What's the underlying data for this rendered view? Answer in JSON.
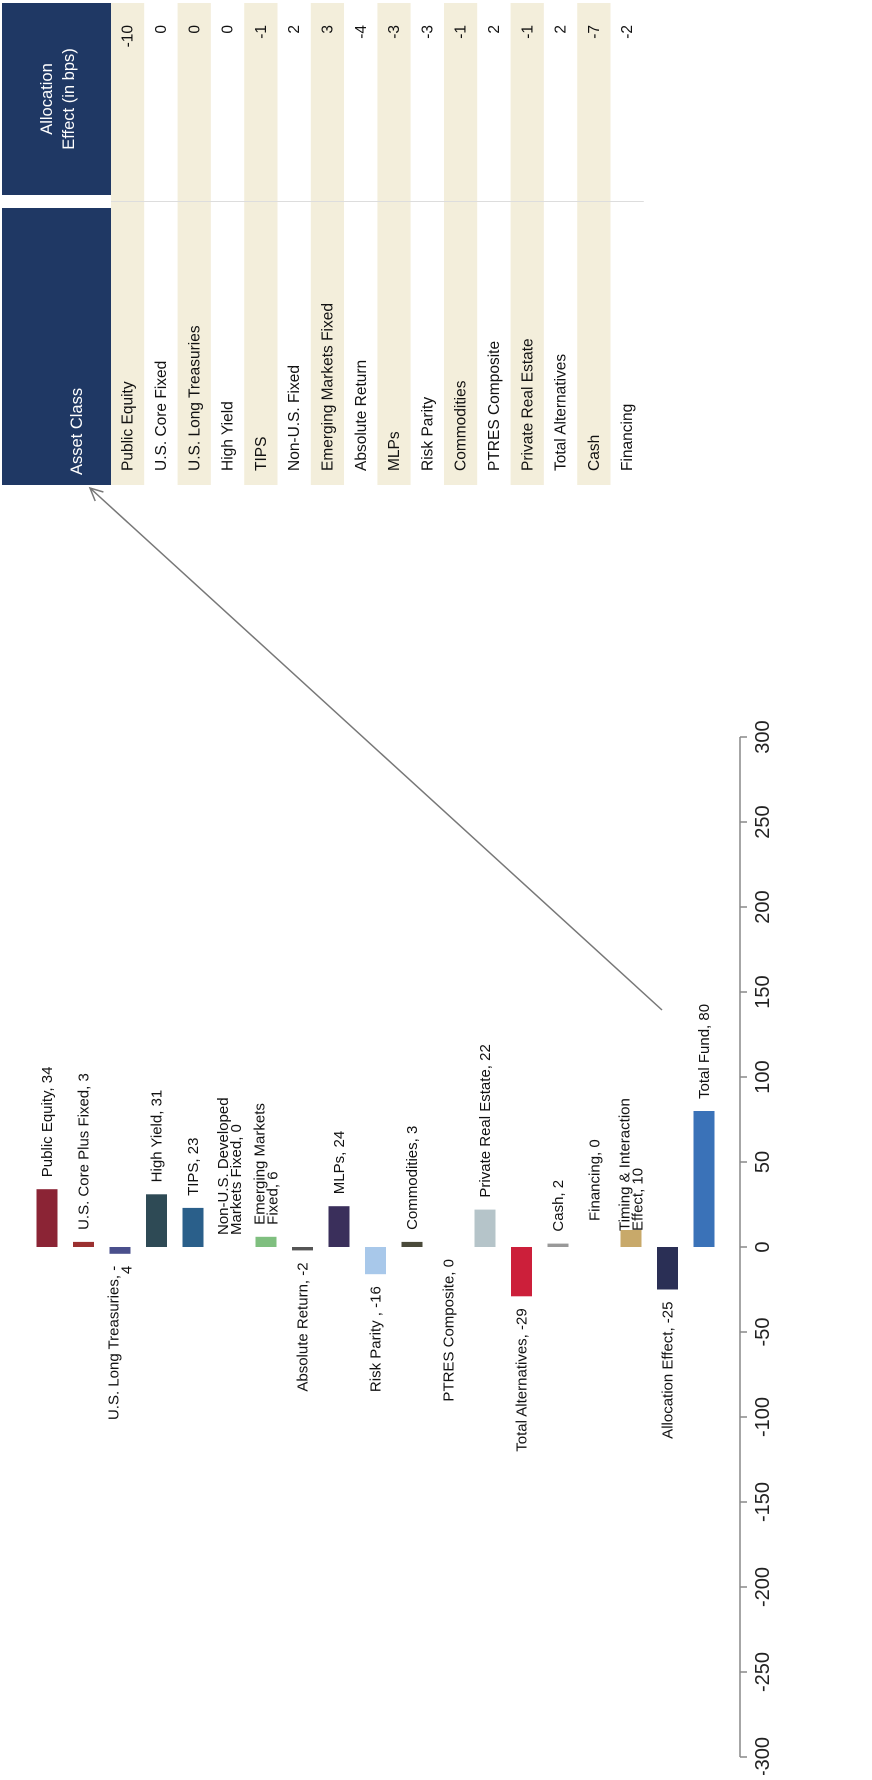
{
  "colors": {
    "axis": "#888888",
    "arrow": "#777777",
    "header_bg": "#1f3864",
    "row_band": "#f3eedb",
    "row_plain": "#ffffff",
    "table_divider": "#dddddd"
  },
  "chart_data": {
    "type": "bar",
    "orientation": "horizontal",
    "value_axis": {
      "min": -300,
      "max": 300,
      "step": 50
    },
    "ticks": [
      "-300",
      "-250",
      "-200",
      "-150",
      "-100",
      "-50",
      "0",
      "50",
      "100",
      "150",
      "200",
      "250",
      "300"
    ],
    "bars": [
      {
        "category": "Public Equity",
        "value": 34,
        "label": [
          "Public Equity, 34"
        ],
        "color": "#8b2435",
        "label_side": "pos"
      },
      {
        "category": "U.S. Core Plus Fixed",
        "value": 3,
        "label": [
          "U.S. Core Plus Fixed, 3"
        ],
        "color": "#9b3030",
        "label_side": "pos"
      },
      {
        "category": "U.S. Long Treasuries",
        "value": -4,
        "label": [
          "U.S. Long Treasuries, -",
          "4"
        ],
        "color": "#4a4f8c",
        "label_side": "neg"
      },
      {
        "category": "High Yield",
        "value": 31,
        "label": [
          "High Yield, 31"
        ],
        "color": "#2e4a55",
        "label_side": "pos"
      },
      {
        "category": "TIPS",
        "value": 23,
        "label": [
          "TIPS, 23"
        ],
        "color": "#2a5f8a",
        "label_side": "pos"
      },
      {
        "category": "Non-U.S. Developed Markets Fixed",
        "value": 0,
        "label": [
          "Non-U.S. Developed",
          "Markets Fixed, 0"
        ],
        "color": "#5b7fa6",
        "label_side": "pos"
      },
      {
        "category": "Emerging Markets Fixed",
        "value": 6,
        "label": [
          "Emerging Markets",
          "Fixed, 6"
        ],
        "color": "#7fbf7f",
        "label_side": "pos"
      },
      {
        "category": "Absolute Return",
        "value": -2,
        "label": [
          "Absolute Return, -2"
        ],
        "color": "#555555",
        "label_side": "neg"
      },
      {
        "category": "MLPs",
        "value": 24,
        "label": [
          "MLPs, 24"
        ],
        "color": "#3a2f5b",
        "label_side": "pos"
      },
      {
        "category": "Risk Parity",
        "value": -16,
        "label": [
          "Risk Parity , -16"
        ],
        "color": "#a8c8ea",
        "label_side": "neg"
      },
      {
        "category": "Commodities",
        "value": 3,
        "label": [
          "Commodities, 3"
        ],
        "color": "#4a4a3a",
        "label_side": "pos"
      },
      {
        "category": "PTRES Composite",
        "value": 0,
        "label": [
          "PTRES Composite, 0"
        ],
        "color": "#888888",
        "label_side": "neg"
      },
      {
        "category": "Private Real Estate",
        "value": 22,
        "label": [
          "Private Real Estate, 22"
        ],
        "color": "#b5c4c9",
        "label_side": "pos"
      },
      {
        "category": "Total Alternatives",
        "value": -29,
        "label": [
          "Total Alternatives, -29"
        ],
        "color": "#cc1f3a",
        "label_side": "neg"
      },
      {
        "category": "Cash",
        "value": 2,
        "label": [
          "Cash, 2"
        ],
        "color": "#999999",
        "label_side": "pos"
      },
      {
        "category": "Financing",
        "value": 0,
        "label": [
          "Financing, 0"
        ],
        "color": "#888888",
        "label_side": "pos"
      },
      {
        "category": "Timing & Interaction Effect",
        "value": 10,
        "label": [
          "Timing & Interaction",
          "Effect, 10"
        ],
        "color": "#c8a96a",
        "label_side": "pos"
      },
      {
        "category": "Allocation Effect",
        "value": -25,
        "label": [
          "Allocation Effect, -25"
        ],
        "color": "#2a2f55",
        "label_side": "neg"
      },
      {
        "category": "Total Fund",
        "value": 80,
        "label": [
          "Total Fund, 80"
        ],
        "color": "#3a72b8",
        "label_side": "pos"
      }
    ]
  },
  "table": {
    "headers": {
      "asset_class": "Asset Class",
      "allocation_effect": [
        "Allocation",
        "Effect (in bps)"
      ]
    },
    "rows": [
      {
        "asset_class": "Public Equity",
        "allocation_effect": "-10"
      },
      {
        "asset_class": "U.S. Core Fixed",
        "allocation_effect": "0"
      },
      {
        "asset_class": "U.S. Long Treasuries",
        "allocation_effect": "0"
      },
      {
        "asset_class": "High Yield",
        "allocation_effect": "0"
      },
      {
        "asset_class": "TIPS",
        "allocation_effect": "-1"
      },
      {
        "asset_class": "Non-U.S. Fixed",
        "allocation_effect": "2"
      },
      {
        "asset_class": "Emerging Markets Fixed",
        "allocation_effect": "3"
      },
      {
        "asset_class": "Absolute Return",
        "allocation_effect": "-4"
      },
      {
        "asset_class": "MLPs",
        "allocation_effect": "-3"
      },
      {
        "asset_class": "Risk Parity",
        "allocation_effect": "-3"
      },
      {
        "asset_class": "Commodities",
        "allocation_effect": "-1"
      },
      {
        "asset_class": "PTRES Composite",
        "allocation_effect": "2"
      },
      {
        "asset_class": "Private Real Estate",
        "allocation_effect": "-1"
      },
      {
        "asset_class": "Total Alternatives",
        "allocation_effect": "2"
      },
      {
        "asset_class": "Cash",
        "allocation_effect": "-7"
      },
      {
        "asset_class": "Financing",
        "allocation_effect": "-2"
      }
    ]
  }
}
